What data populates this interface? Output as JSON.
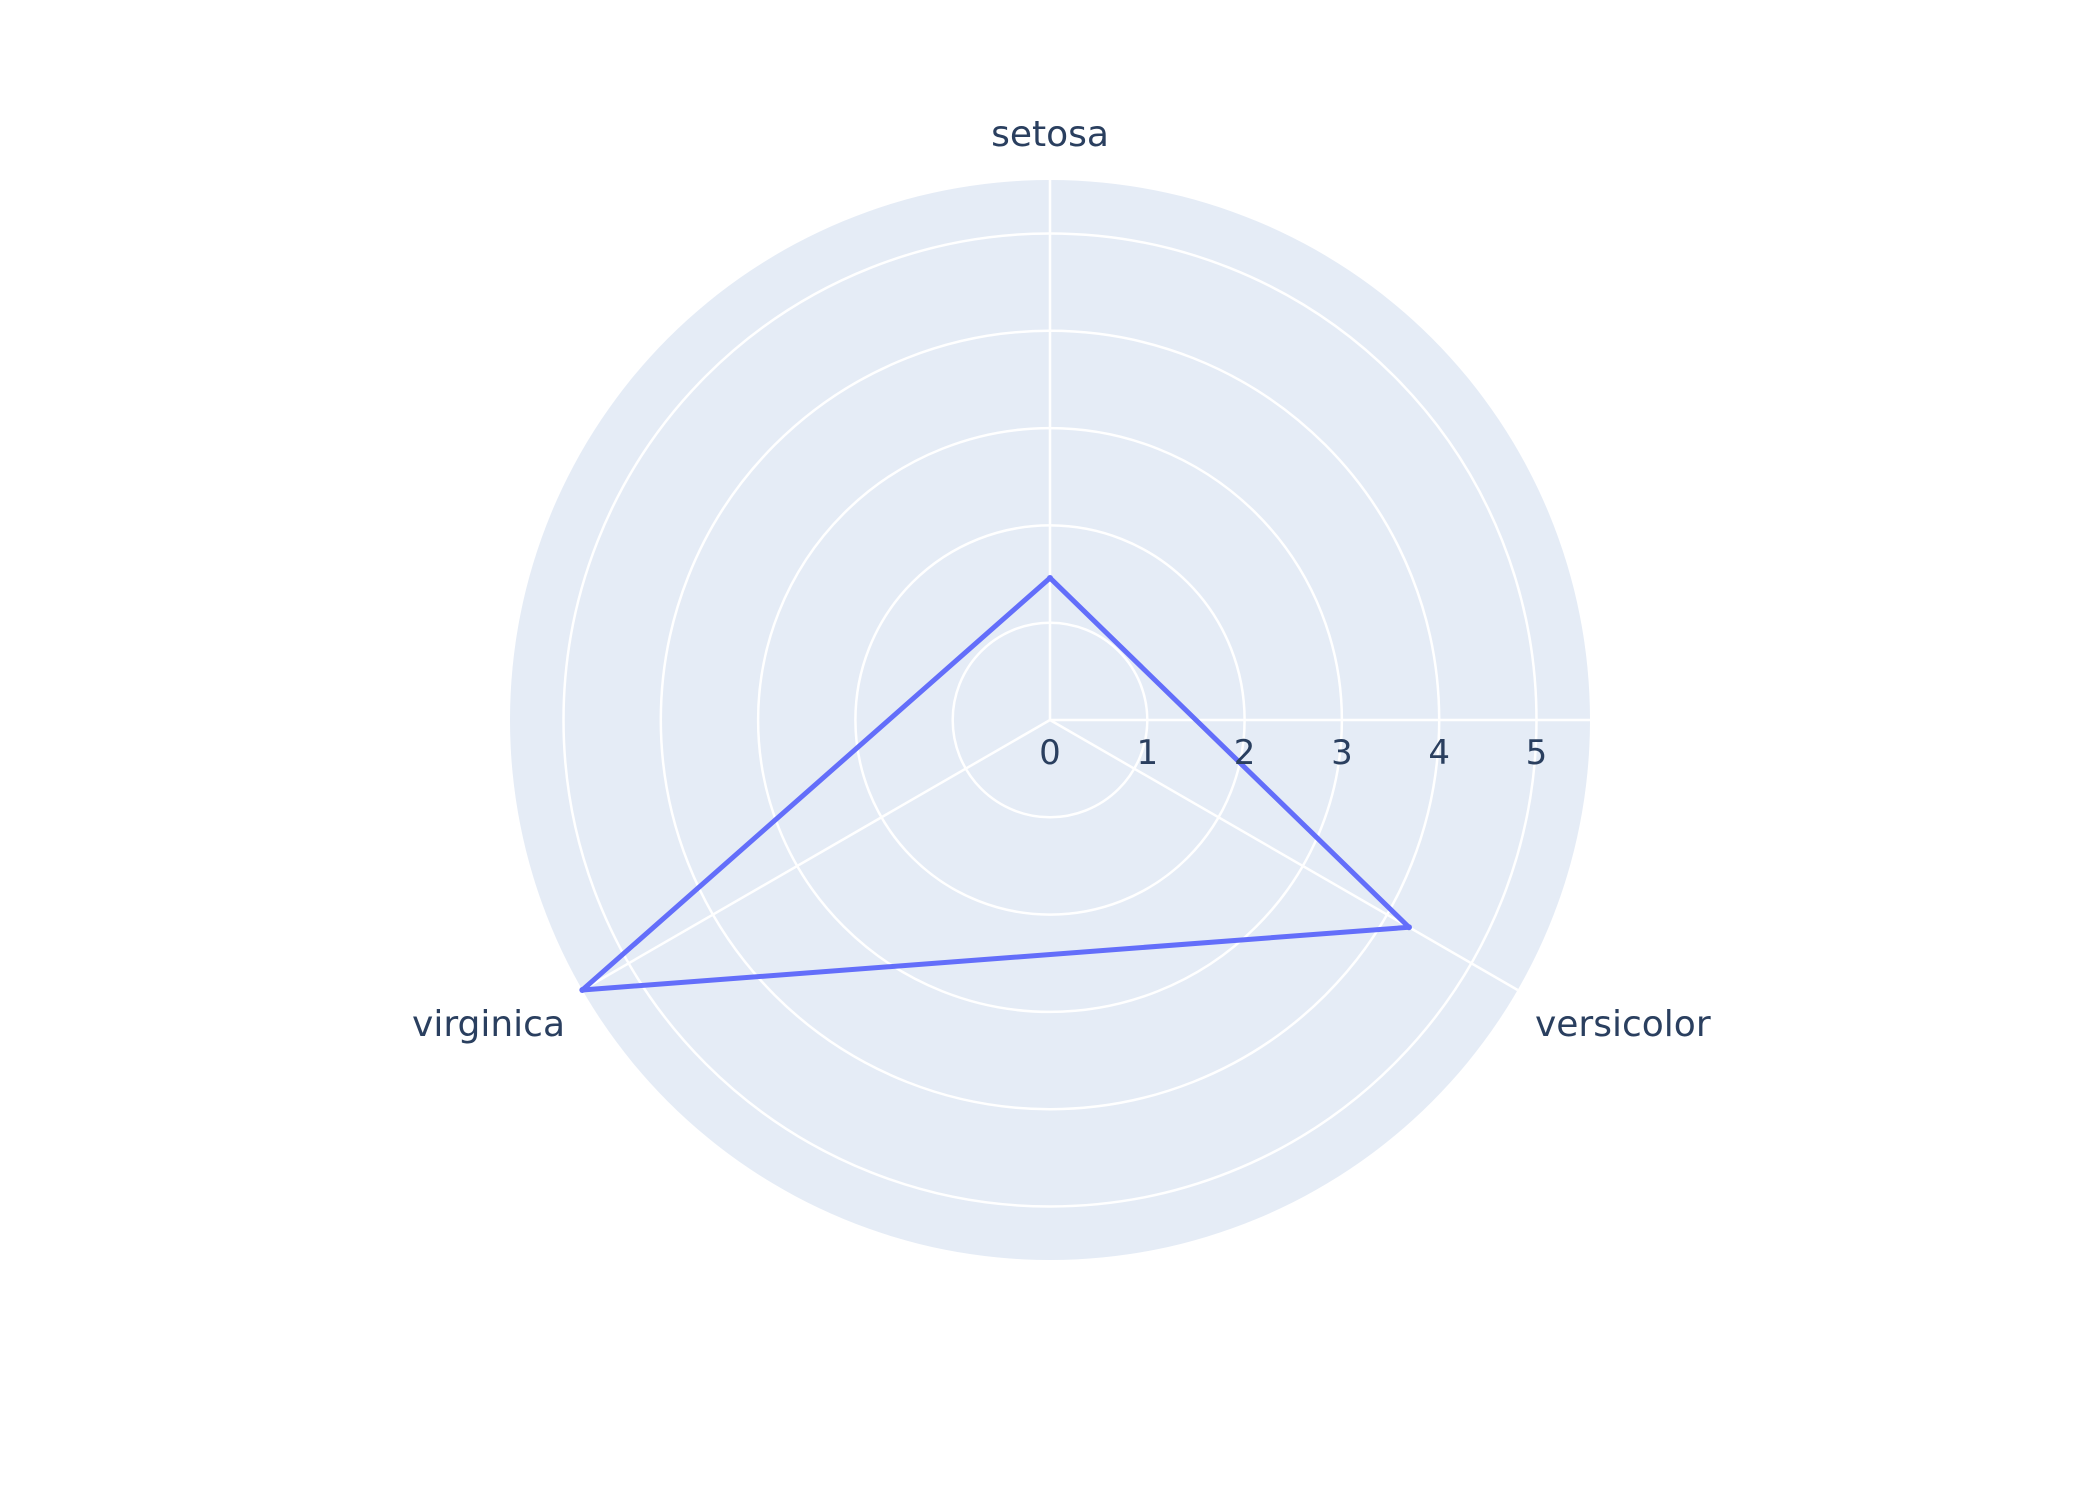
{
  "chart_data": {
    "type": "radar",
    "categories": [
      "setosa",
      "versicolor",
      "virginica"
    ],
    "series": [
      {
        "values": [
          1.46,
          4.26,
          5.55
        ]
      }
    ],
    "rlim": [
      0,
      5.55
    ],
    "r_ticks": [
      0,
      1,
      2,
      3,
      4,
      5
    ],
    "angular_start_deg": 90,
    "angular_direction": "clockwise",
    "grid": true,
    "fill": "none",
    "colors": {
      "plot_bg": "#e5ecf6",
      "grid": "#ffffff",
      "series": "#636efa",
      "text": "#2a3f5f"
    }
  }
}
